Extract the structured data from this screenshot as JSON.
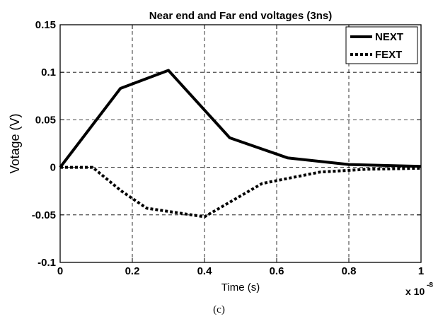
{
  "chart_data": {
    "type": "line",
    "title": "Near end and Far end voltages (3ns)",
    "xlabel": "Time (s)",
    "ylabel": "Votage (V)",
    "xlim": [
      0,
      1
    ],
    "ylim": [
      -0.1,
      0.15
    ],
    "x_ticks": [
      "0",
      "0.2",
      "0.4",
      "0.6",
      "0.8",
      "1"
    ],
    "y_ticks": [
      "-0.1",
      "-0.05",
      "0",
      "0.05",
      "0.1",
      "0.15"
    ],
    "x_multiplier_base": "x 10",
    "x_multiplier_exp": "-8",
    "grid": true,
    "legend_position": "top-right",
    "series": [
      {
        "name": "NEXT",
        "style": "solid",
        "color": "#000000",
        "x": [
          0,
          0.167,
          0.3,
          0.47,
          0.63,
          0.8,
          1.0
        ],
        "y": [
          0,
          0.083,
          0.102,
          0.031,
          0.01,
          0.003,
          0.001
        ]
      },
      {
        "name": "FEXT",
        "style": "dotted",
        "color": "#000000",
        "x": [
          0,
          0.09,
          0.17,
          0.24,
          0.4,
          0.56,
          0.72,
          0.85,
          1.0
        ],
        "y": [
          0,
          0,
          -0.025,
          -0.043,
          -0.052,
          -0.017,
          -0.005,
          -0.002,
          -0.001
        ]
      }
    ]
  },
  "caption": "(c)"
}
